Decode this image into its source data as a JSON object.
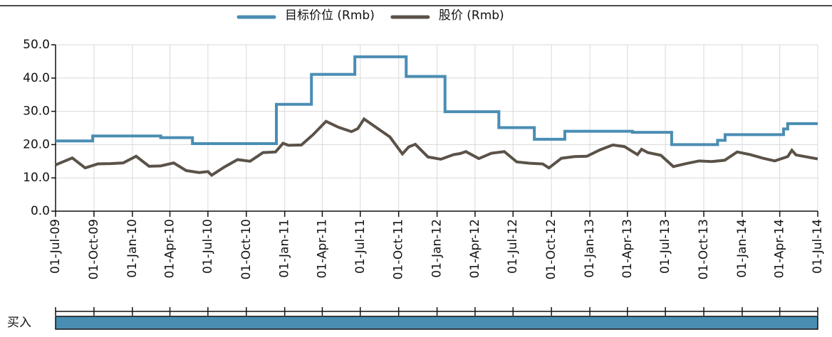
{
  "chart_data": {
    "type": "line",
    "series": [
      {
        "name": "目标价位 (Rmb)",
        "color": "#4a8db3",
        "step": true,
        "x": [
          "2009-07-01",
          "2009-09-28",
          "2010-03-10",
          "2010-05-25",
          "2010-12-12",
          "2011-03-06",
          "2011-06-18",
          "2011-10-19",
          "2012-01-20",
          "2012-05-28",
          "2012-08-21",
          "2012-11-02",
          "2013-04-13",
          "2013-07-16",
          "2013-11-03",
          "2013-11-21",
          "2014-04-10",
          "2014-04-20",
          "2014-07-01"
        ],
        "values": [
          21.1,
          22.6,
          22.1,
          20.3,
          32.1,
          41.1,
          46.4,
          40.5,
          29.9,
          25.1,
          21.6,
          24.0,
          23.7,
          20.0,
          21.3,
          23.0,
          24.7,
          26.3,
          26.3
        ]
      },
      {
        "name": "股价 (Rmb)",
        "color": "#5a5248",
        "x": [
          "2009-07-01",
          "2009-08-10",
          "2009-09-10",
          "2009-10-10",
          "2009-11-10",
          "2009-12-10",
          "2010-01-10",
          "2010-02-10",
          "2010-03-10",
          "2010-04-10",
          "2010-05-10",
          "2010-06-10",
          "2010-07-01",
          "2010-07-10",
          "2010-08-10",
          "2010-09-10",
          "2010-10-10",
          "2010-11-10",
          "2010-12-10",
          "2010-12-28",
          "2011-01-10",
          "2011-02-10",
          "2011-03-10",
          "2011-04-10",
          "2011-05-10",
          "2011-06-10",
          "2011-06-25",
          "2011-07-10",
          "2011-08-10",
          "2011-09-10",
          "2011-10-10",
          "2011-10-25",
          "2011-11-10",
          "2011-12-10",
          "2012-01-10",
          "2012-02-10",
          "2012-02-25",
          "2012-03-10",
          "2012-04-10",
          "2012-05-10",
          "2012-06-10",
          "2012-07-10",
          "2012-08-10",
          "2012-09-10",
          "2012-09-25",
          "2012-10-25",
          "2012-11-25",
          "2012-12-25",
          "2013-01-25",
          "2013-02-25",
          "2013-03-25",
          "2013-04-25",
          "2013-05-05",
          "2013-05-20",
          "2013-06-20",
          "2013-07-20",
          "2013-08-20",
          "2013-09-20",
          "2013-10-20",
          "2013-11-20",
          "2013-12-20",
          "2014-01-20",
          "2014-02-20",
          "2014-03-20",
          "2014-04-20",
          "2014-04-30",
          "2014-05-10",
          "2014-07-01"
        ],
        "values": [
          13.9,
          16.0,
          13.0,
          14.2,
          14.3,
          14.5,
          16.5,
          13.5,
          13.6,
          14.5,
          12.2,
          11.6,
          11.9,
          10.8,
          13.3,
          15.5,
          15.0,
          17.6,
          17.8,
          20.4,
          19.8,
          19.9,
          23.0,
          27.0,
          25.2,
          23.9,
          24.8,
          27.7,
          25.0,
          22.3,
          17.2,
          19.3,
          20.1,
          16.3,
          15.6,
          17.0,
          17.3,
          17.9,
          15.8,
          17.4,
          17.9,
          14.8,
          14.4,
          14.2,
          13.0,
          15.9,
          16.4,
          16.5,
          18.4,
          19.9,
          19.4,
          17.0,
          18.6,
          17.6,
          16.8,
          13.4,
          14.3,
          15.1,
          14.9,
          15.3,
          17.8,
          17.0,
          15.9,
          15.1,
          16.4,
          18.3,
          16.9,
          15.7
        ]
      }
    ],
    "xlim": [
      "2009-07-01",
      "2014-07-01"
    ],
    "xticks": [
      {
        "value": "2009-07-01",
        "label": "01-Jul-09"
      },
      {
        "value": "2009-10-01",
        "label": "01-Oct-09"
      },
      {
        "value": "2010-01-01",
        "label": "01-Jan-10"
      },
      {
        "value": "2010-04-01",
        "label": "01-Apr-10"
      },
      {
        "value": "2010-07-01",
        "label": "01-Jul-10"
      },
      {
        "value": "2010-10-01",
        "label": "01-Oct-10"
      },
      {
        "value": "2011-01-01",
        "label": "01-Jan-11"
      },
      {
        "value": "2011-04-01",
        "label": "01-Apr-11"
      },
      {
        "value": "2011-07-01",
        "label": "01-Jul-11"
      },
      {
        "value": "2011-10-01",
        "label": "01-Oct-11"
      },
      {
        "value": "2012-01-01",
        "label": "01-Jan-12"
      },
      {
        "value": "2012-04-01",
        "label": "01-Apr-12"
      },
      {
        "value": "2012-07-01",
        "label": "01-Jul-12"
      },
      {
        "value": "2012-10-01",
        "label": "01-Oct-12"
      },
      {
        "value": "2013-01-01",
        "label": "01-Jan-13"
      },
      {
        "value": "2013-04-01",
        "label": "01-Apr-13"
      },
      {
        "value": "2013-07-01",
        "label": "01-Jul-13"
      },
      {
        "value": "2013-10-01",
        "label": "01-Oct-13"
      },
      {
        "value": "2014-01-01",
        "label": "01-Jan-14"
      },
      {
        "value": "2014-04-01",
        "label": "01-Apr-14"
      },
      {
        "value": "2014-07-01",
        "label": "01-Jul-14"
      }
    ],
    "ylim": [
      0,
      50
    ],
    "yticks": [
      {
        "value": 0,
        "label": "0.0"
      },
      {
        "value": 10,
        "label": "10.0"
      },
      {
        "value": 20,
        "label": "20.0"
      },
      {
        "value": 30,
        "label": "30.0"
      },
      {
        "value": 40,
        "label": "40.0"
      },
      {
        "value": 50,
        "label": "50.0"
      }
    ],
    "grid": true,
    "rating": {
      "label": "买入",
      "color": "#4a8db3"
    }
  }
}
